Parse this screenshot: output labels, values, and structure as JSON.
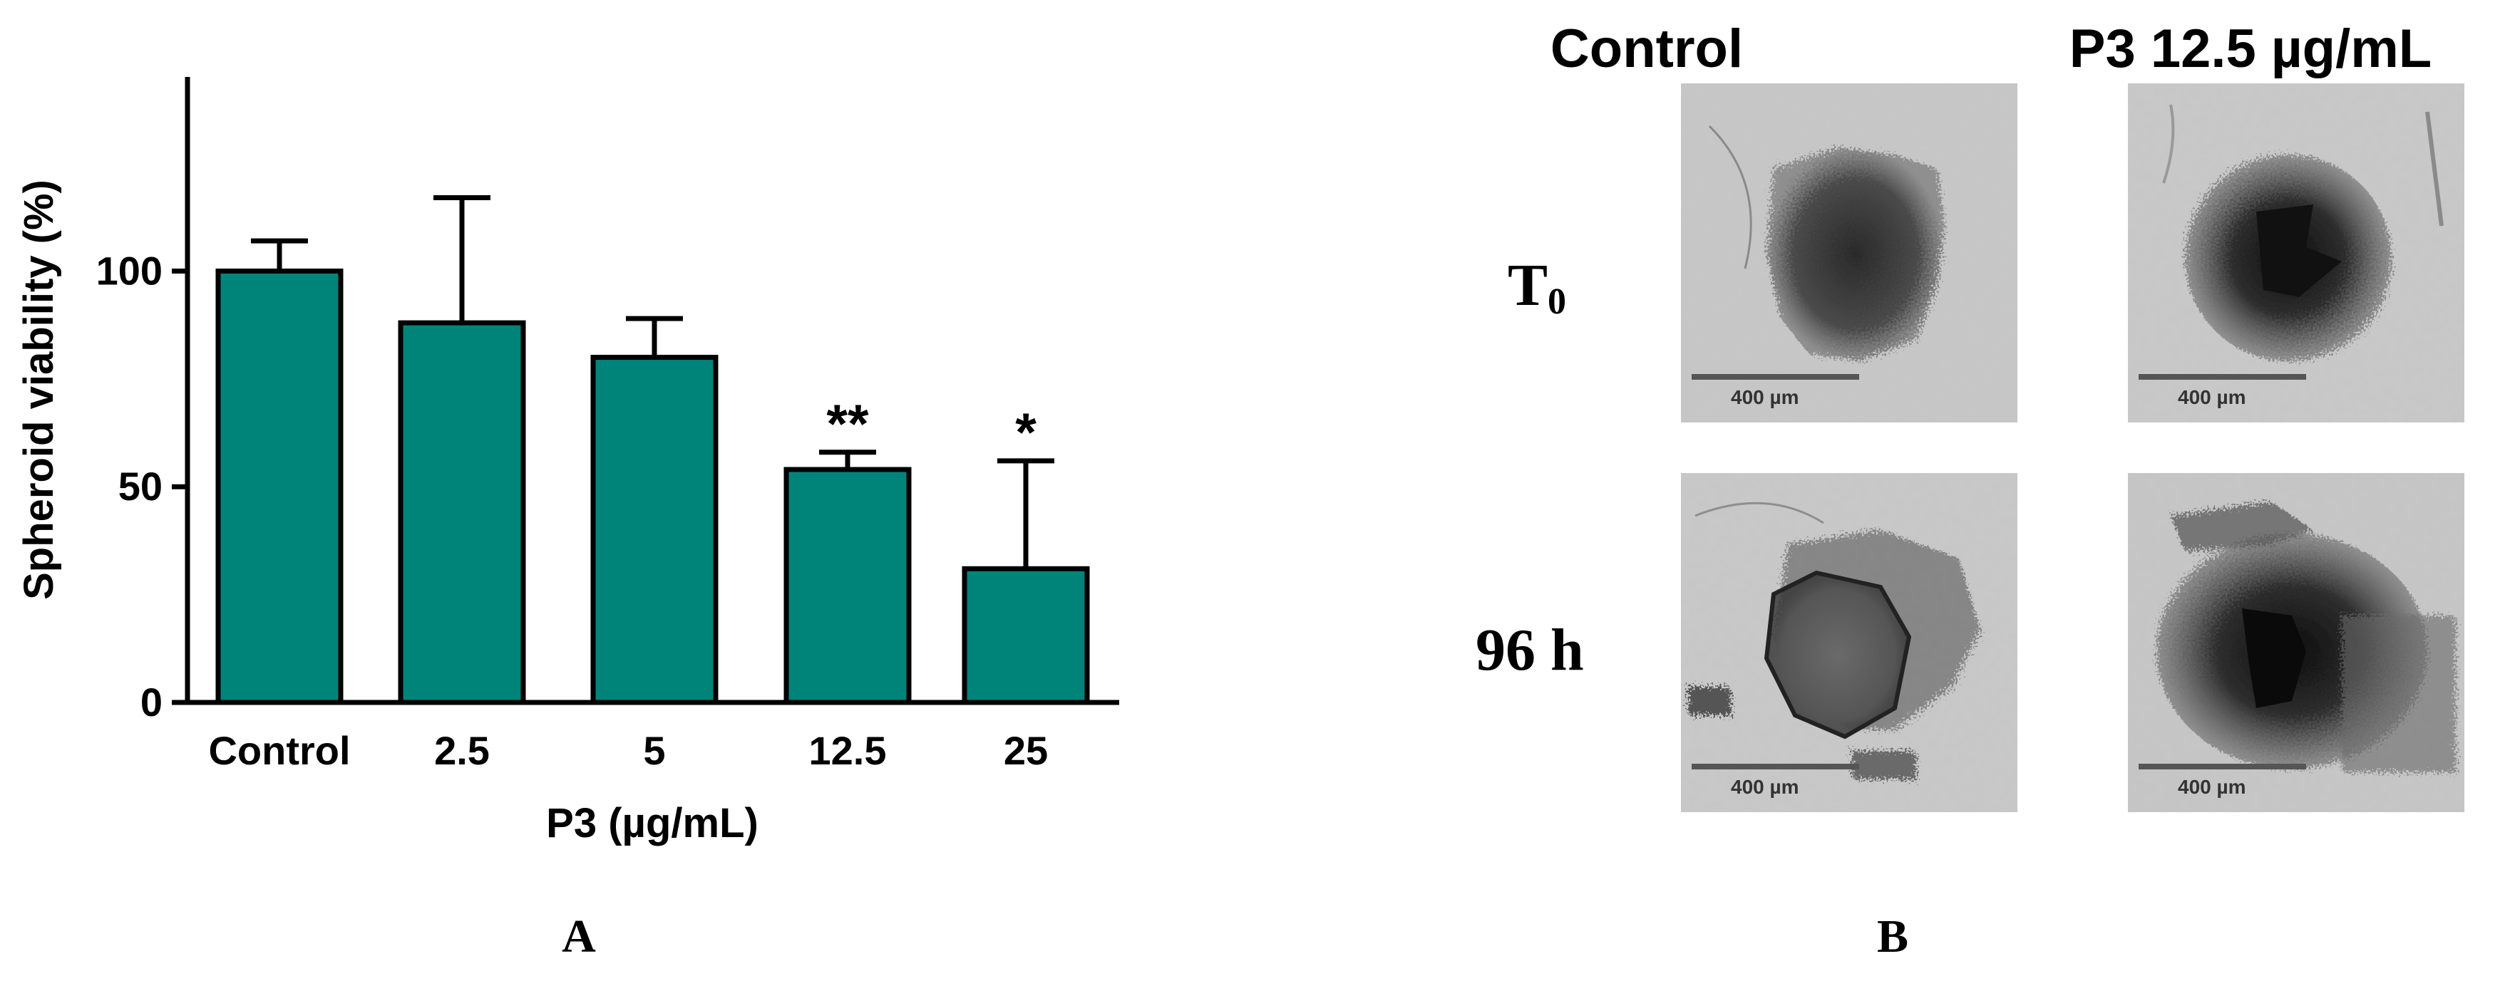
{
  "chart_data": {
    "type": "bar",
    "categories": [
      "Control",
      "2.5",
      "5",
      "12.5",
      "25"
    ],
    "values": [
      100,
      88,
      80,
      54,
      31
    ],
    "error_upper": [
      107,
      117,
      89,
      58,
      56
    ],
    "significance": [
      "",
      "",
      "",
      "**",
      "*"
    ],
    "xlabel": "P3 (µg/mL)",
    "ylabel": "Spheroid viability (%)",
    "yticks": [
      "0",
      "50",
      "100"
    ],
    "ylim": [
      0,
      145
    ],
    "bar_color": "#00847a",
    "grid": false
  },
  "panels": {
    "left_label": "A",
    "right_label": "B"
  },
  "micrographs": {
    "columns": [
      "Control",
      "P3 12.5 µg/mL"
    ],
    "rows": [
      {
        "label": "T",
        "subscript": "0"
      },
      {
        "label": "96 h",
        "subscript": ""
      }
    ],
    "scale_bar_text": "400 µm"
  }
}
